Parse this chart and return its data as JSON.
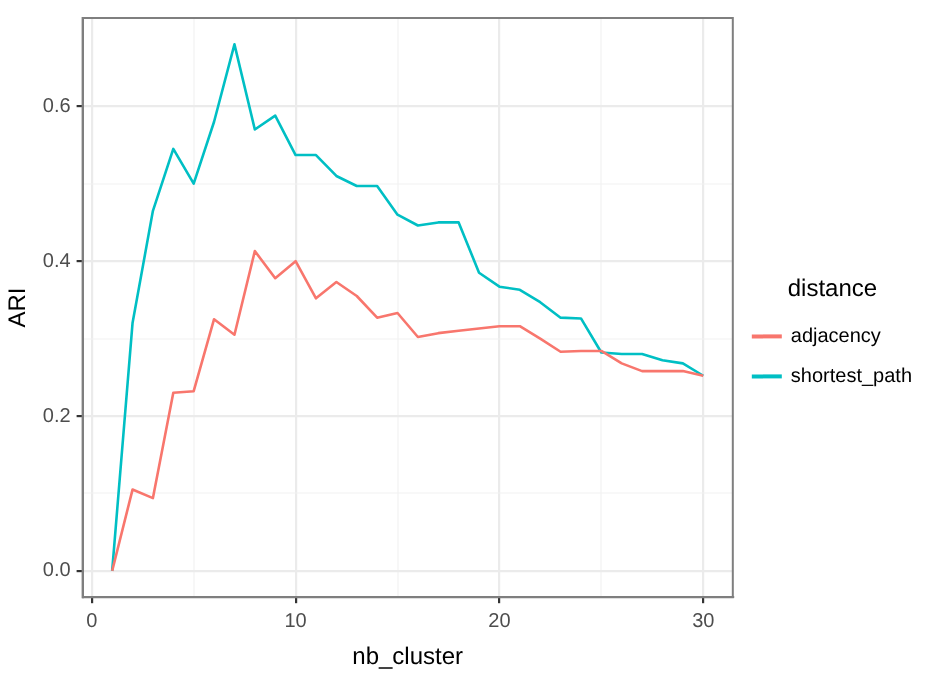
{
  "chart_data": {
    "type": "line",
    "xlabel": "nb_cluster",
    "ylabel": "ARI",
    "legend_title": "distance",
    "legend": "right",
    "grid": true,
    "marker": "none",
    "line_style": "solid",
    "x": [
      1,
      2,
      3,
      4,
      5,
      6,
      7,
      8,
      9,
      10,
      11,
      12,
      13,
      14,
      15,
      16,
      17,
      18,
      19,
      20,
      21,
      22,
      23,
      24,
      25,
      26,
      27,
      28,
      29,
      30
    ],
    "xlim": [
      -0.45,
      31.45
    ],
    "xticks": [
      0,
      {
        "value": 5,
        "label": null
      },
      10,
      {
        "value": 15,
        "label": null
      },
      20,
      {
        "value": 25,
        "label": null
      },
      30
    ],
    "ylim": [
      -0.034,
      0.714
    ],
    "yticks": [
      {
        "value": 0,
        "label": "0.0"
      },
      {
        "value": 0.1,
        "label": null
      },
      {
        "value": 0.2,
        "label": "0.2"
      },
      {
        "value": 0.3,
        "label": null
      },
      {
        "value": 0.4,
        "label": "0.4"
      },
      {
        "value": 0.5,
        "label": null
      },
      {
        "value": 0.6,
        "label": "0.6"
      }
    ],
    "series": [
      {
        "name": "adjacency",
        "color": "#f8766d",
        "values": [
          0,
          0.105,
          0.094,
          0.23,
          0.232,
          0.325,
          0.305,
          0.413,
          0.378,
          0.4,
          0.352,
          0.373,
          0.355,
          0.327,
          0.333,
          0.302,
          0.307,
          0.31,
          0.313,
          0.316,
          0.316,
          0.3,
          0.283,
          0.284,
          0.284,
          0.268,
          0.258,
          0.258,
          0.258,
          0.252
        ]
      },
      {
        "name": "shortest_path",
        "color": "#00bfc4",
        "values": [
          0,
          0.32,
          0.465,
          0.545,
          0.5,
          0.58,
          0.68,
          0.57,
          0.588,
          0.537,
          0.537,
          0.51,
          0.497,
          0.497,
          0.46,
          0.446,
          0.45,
          0.45,
          0.385,
          0.367,
          0.363,
          0.347,
          0.327,
          0.326,
          0.282,
          0.28,
          0.28,
          0.272,
          0.268,
          0.252
        ]
      }
    ]
  }
}
